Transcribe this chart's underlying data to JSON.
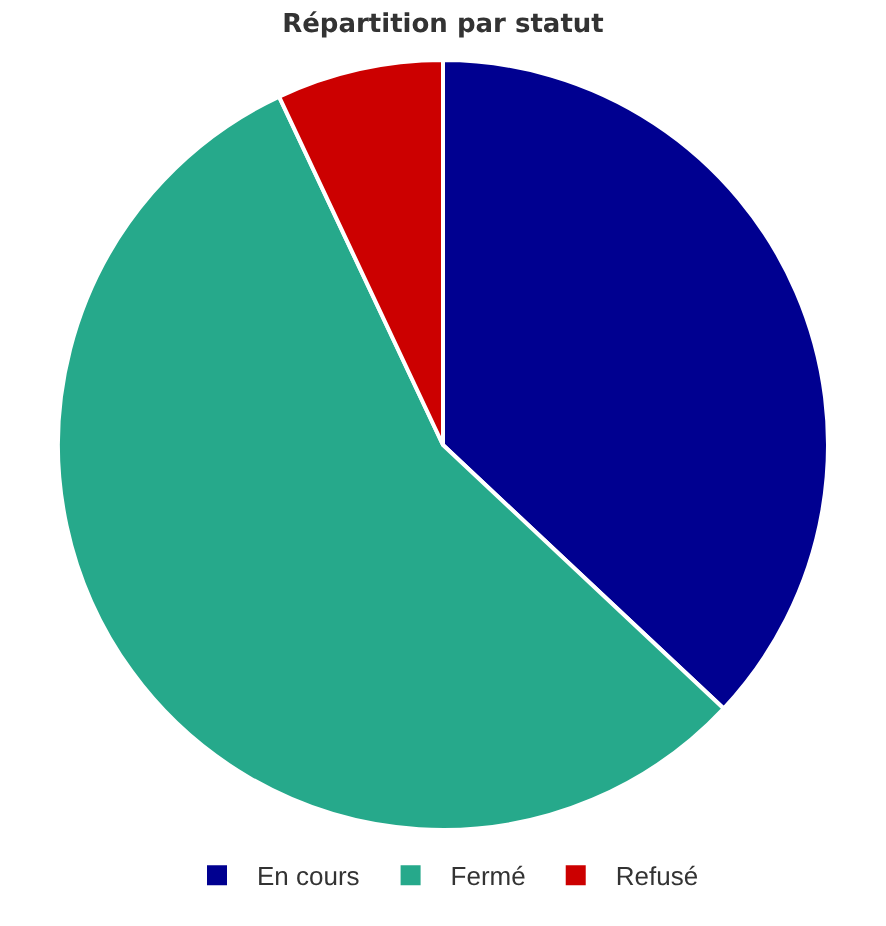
{
  "chart_data": {
    "type": "pie",
    "title": "Répartition par statut",
    "categories": [
      "En cours",
      "Fermé",
      "Refusé"
    ],
    "values": [
      37,
      56,
      7
    ],
    "colors": [
      "#000090",
      "#26a98b",
      "#cc0000"
    ],
    "legend": "bottom"
  }
}
